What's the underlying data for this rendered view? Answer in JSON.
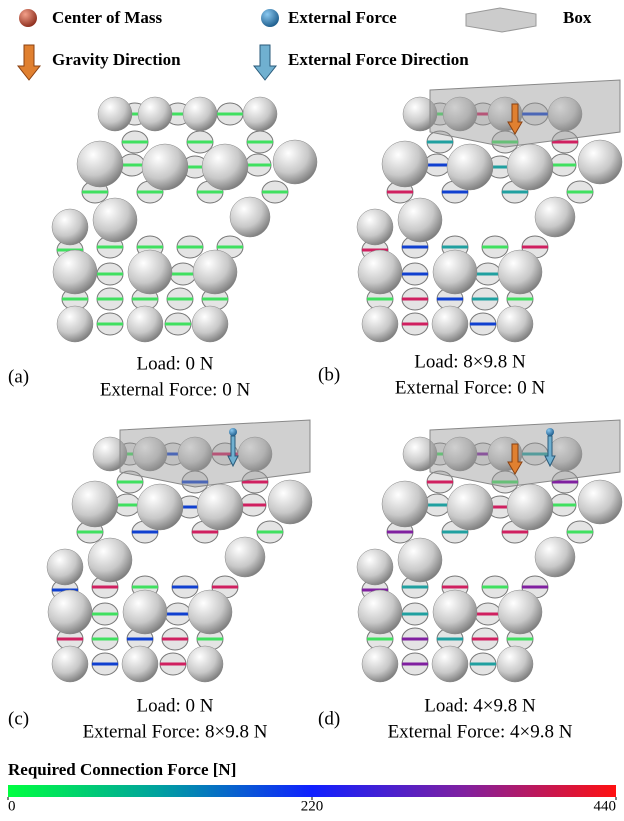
{
  "legend": {
    "center_of_mass": "Center of Mass",
    "external_force": "External Force",
    "box": "Box",
    "gravity_direction": "Gravity Direction",
    "external_force_direction": "External Force Direction"
  },
  "panels": [
    {
      "label": "(a)",
      "load": "Load: 0 N",
      "force": "External Force: 0 N"
    },
    {
      "label": "(b)",
      "load": "Load: 8×9.8 N",
      "force": "External Force: 0 N"
    },
    {
      "label": "(c)",
      "load": "Load: 0 N",
      "force": "External Force: 8×9.8 N"
    },
    {
      "label": "(d)",
      "load": "Load: 4×9.8 N",
      "force": "External Force: 4×9.8 N"
    }
  ],
  "colorbar": {
    "title": "Required Connection Force [N]",
    "range": [
      0,
      440
    ],
    "ticks": [
      0,
      220,
      440
    ]
  }
}
